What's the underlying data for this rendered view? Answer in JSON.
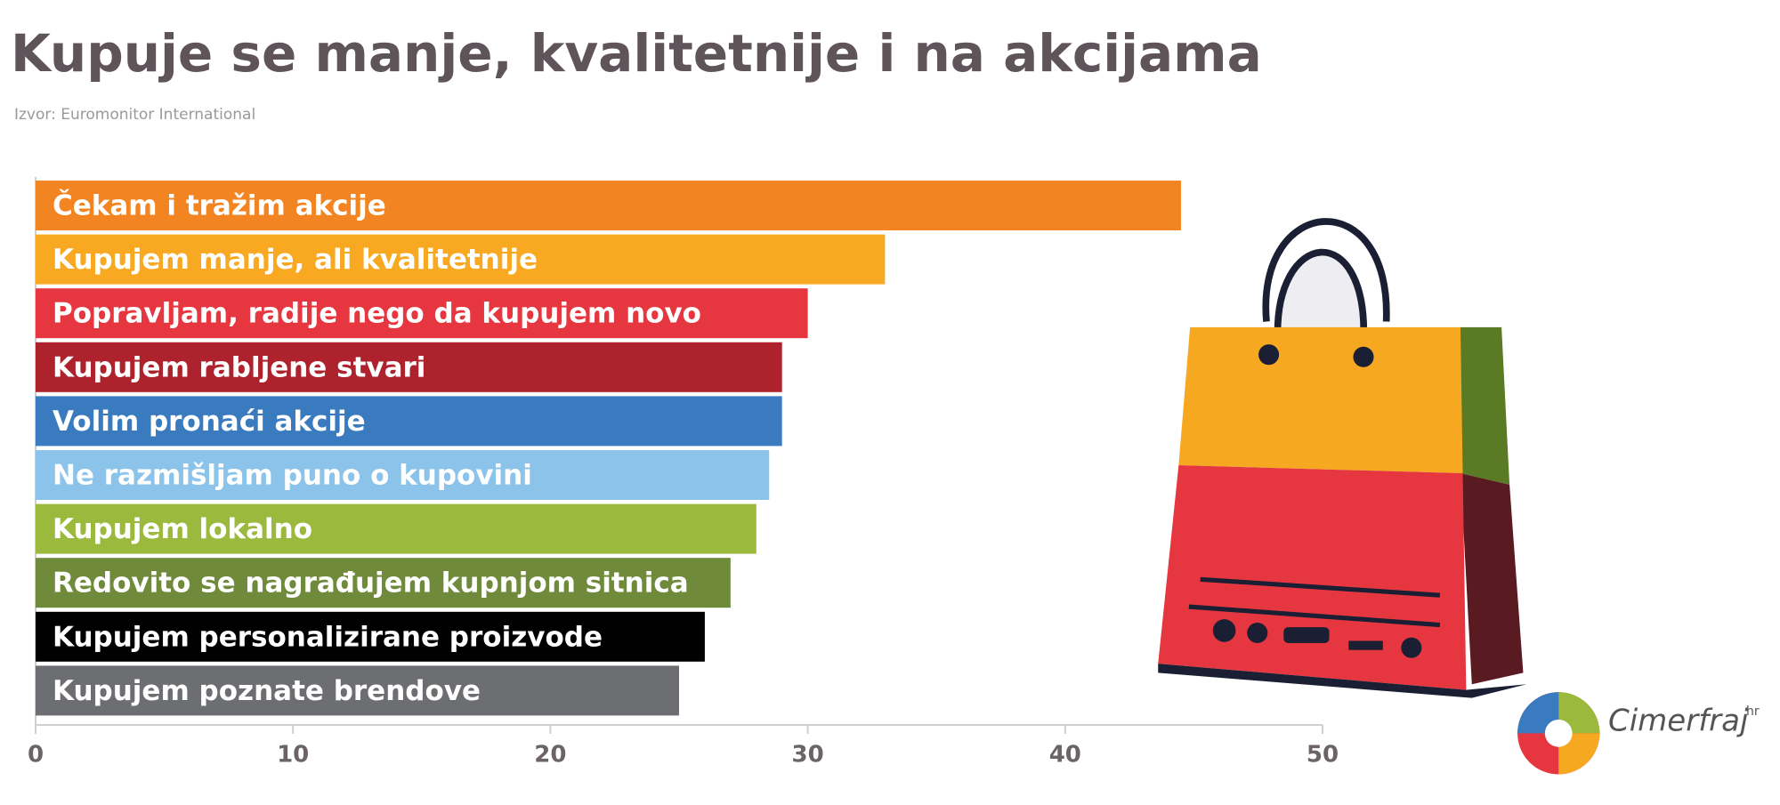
{
  "chart_data": {
    "type": "bar",
    "orientation": "horizontal",
    "title": "Kupuje se manje, kvalitetnije i na akcijama",
    "subtitle": "Izvor: Euromonitor International",
    "categories": [
      "Čekam i tražim akcije",
      "Kupujem manje, ali kvalitetnije",
      "Popravljam, radije nego da kupujem novo",
      "Kupujem rabljene stvari",
      "Volim pronaći akcije",
      "Ne razmišljam puno o kupovini",
      "Kupujem lokalno",
      "Redovito se nagrađujem kupnjom sitnica",
      "Kupujem personalizirane proizvode",
      "Kupujem poznate brendove"
    ],
    "values": [
      44.5,
      33,
      30,
      29,
      29,
      28.5,
      28,
      27,
      26,
      25
    ],
    "colors": [
      "#f28522",
      "#f8a821",
      "#e63740",
      "#ad222d",
      "#3a7bbf",
      "#8bc3ea",
      "#9bba3d",
      "#6f8a3a",
      "#000000",
      "#6d6e71"
    ],
    "xlim": [
      0,
      50
    ],
    "xticks": [
      0,
      10,
      20,
      30,
      40,
      50
    ]
  },
  "logo": {
    "text": "Cimerfraj",
    "suffix": "hr"
  }
}
